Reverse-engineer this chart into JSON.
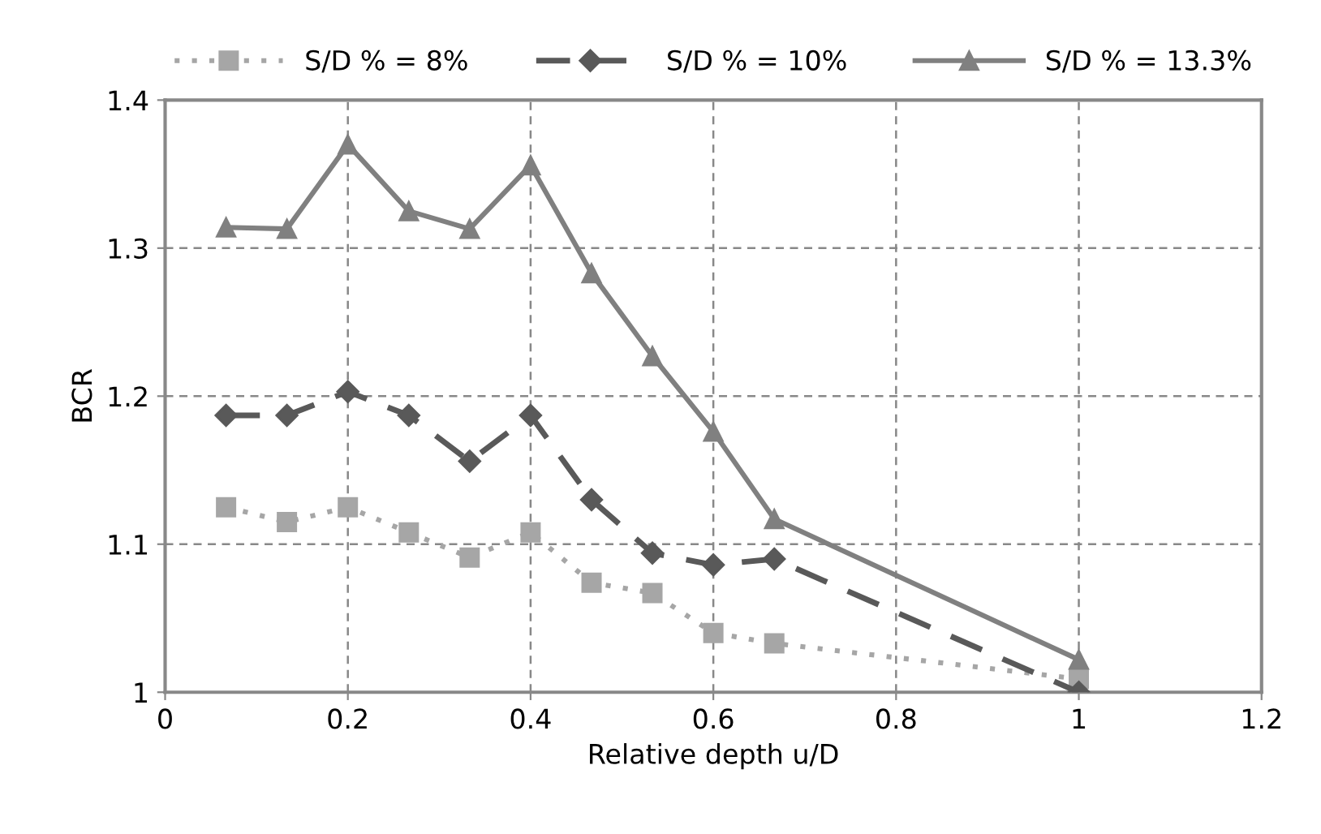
{
  "chart_data": {
    "type": "line",
    "xlabel": "Relative depth u/D",
    "ylabel": "BCR",
    "xlim": [
      0,
      1.2
    ],
    "xticks": [
      0,
      0.2,
      0.4,
      0.6,
      0.8,
      1,
      1.2
    ],
    "ylim": [
      1,
      1.4
    ],
    "yticks": [
      1,
      1.1,
      1.2,
      1.3,
      1.4
    ],
    "grid": true,
    "legend": "top",
    "series": [
      {
        "name": "S/D % = 8%",
        "color": "#a6a6a6",
        "marker": "square",
        "line_style": "dotted",
        "x": [
          0.0667,
          0.1333,
          0.2,
          0.2667,
          0.3333,
          0.4,
          0.4667,
          0.5333,
          0.6,
          0.6667,
          1
        ],
        "values": [
          1.125,
          1.115,
          1.125,
          1.108,
          1.091,
          1.108,
          1.074,
          1.067,
          1.04,
          1.033,
          1.009
        ]
      },
      {
        "name": "S/D % = 10%",
        "color": "#595959",
        "marker": "diamond",
        "line_style": "dashed",
        "x": [
          0.0667,
          0.1333,
          0.2,
          0.2667,
          0.3333,
          0.4,
          0.4667,
          0.5333,
          0.6,
          0.6667,
          1
        ],
        "values": [
          1.187,
          1.187,
          1.203,
          1.187,
          1.156,
          1.187,
          1.13,
          1.094,
          1.086,
          1.09,
          1.0
        ]
      },
      {
        "name": "S/D % = 13.3%",
        "color": "#808080",
        "marker": "triangle",
        "line_style": "solid",
        "x": [
          0.0667,
          0.1333,
          0.2,
          0.2667,
          0.3333,
          0.4,
          0.4667,
          0.5333,
          0.6,
          0.6667,
          1
        ],
        "values": [
          1.314,
          1.313,
          1.37,
          1.325,
          1.313,
          1.356,
          1.283,
          1.227,
          1.176,
          1.117,
          1.022
        ]
      }
    ]
  }
}
